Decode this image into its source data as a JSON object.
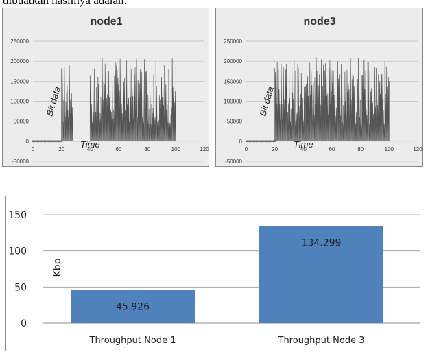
{
  "document": {
    "top_text": "dibuatkan hasilnya adalah."
  },
  "chart_data": [
    {
      "type": "line",
      "title": "node1",
      "xlabel": "Time",
      "ylabel": "Bit data",
      "xlim": [
        0,
        120
      ],
      "ylim": [
        -50000,
        250000
      ],
      "xticks": [
        0,
        20,
        40,
        60,
        80,
        100,
        120
      ],
      "yticks": [
        -50000,
        0,
        50000,
        100000,
        150000,
        200000,
        250000
      ],
      "segments": [
        {
          "x": [
            0,
            20
          ],
          "y": 0,
          "note": "idle"
        },
        {
          "x": [
            20,
            28
          ],
          "y_range": [
            0,
            200000
          ]
        },
        {
          "x": [
            28,
            40
          ],
          "y": 0,
          "note": "idle"
        },
        {
          "x": [
            40,
            100
          ],
          "y_range": [
            0,
            210000
          ]
        }
      ],
      "grid": true
    },
    {
      "type": "line",
      "title": "node3",
      "xlabel": "Time",
      "ylabel": "Bit data",
      "xlim": [
        0,
        120
      ],
      "ylim": [
        -50000,
        250000
      ],
      "xticks": [
        0,
        20,
        40,
        60,
        80,
        100,
        120
      ],
      "yticks": [
        -50000,
        0,
        50000,
        100000,
        150000,
        200000,
        250000
      ],
      "segments": [
        {
          "x": [
            0,
            20
          ],
          "y": 0,
          "note": "idle"
        },
        {
          "x": [
            20,
            100
          ],
          "y_range": [
            0,
            210000
          ]
        }
      ],
      "grid": true
    },
    {
      "type": "bar",
      "categories": [
        "Throughput Node 1",
        "Throughput Node 3"
      ],
      "values": [
        45.926,
        134.299
      ],
      "value_labels": [
        "45.926",
        "134.299"
      ],
      "ylabel": "Kbp",
      "ylim": [
        0,
        150
      ],
      "yticks": [
        0,
        50,
        100,
        150
      ],
      "bar_color": "#4f81bd",
      "grid": true
    }
  ]
}
